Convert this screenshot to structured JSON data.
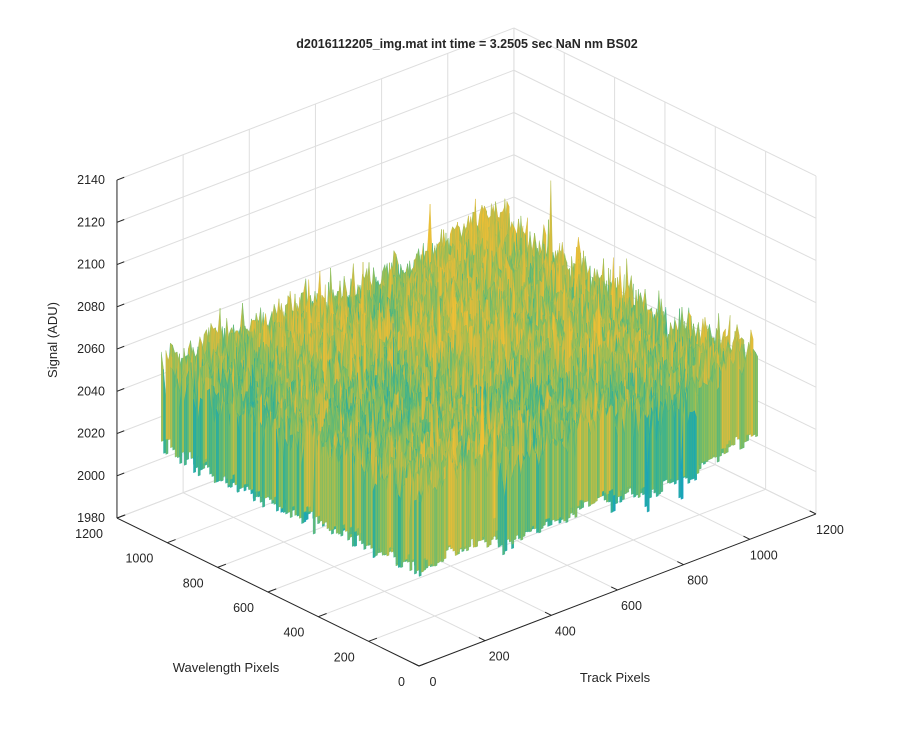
{
  "chart_data": {
    "type": "surface",
    "title": "d2016112205_img.mat int time = 3.2505 sec  NaN nm BS02",
    "xlabel": "Track Pixels",
    "ylabel": "Wavelength Pixels",
    "zlabel": "Signal (ADU)",
    "xlim": [
      0,
      1200
    ],
    "ylim": [
      0,
      1200
    ],
    "zlim": [
      1980,
      2140
    ],
    "x_ticks": [
      0,
      200,
      400,
      600,
      800,
      1000,
      1200
    ],
    "y_ticks": [
      0,
      200,
      400,
      600,
      800,
      1000,
      1200
    ],
    "z_ticks": [
      1980,
      2000,
      2020,
      2040,
      2060,
      2080,
      2100,
      2120,
      2140
    ],
    "x_tick_labels": [
      "0",
      "200",
      "400",
      "600",
      "800",
      "1000",
      "1200"
    ],
    "y_tick_labels": [
      "0",
      "200",
      "400",
      "600",
      "800",
      "1000",
      "1200"
    ],
    "z_tick_labels": [
      "1980",
      "2000",
      "2020",
      "2040",
      "2060",
      "2080",
      "2100",
      "2120",
      "2140"
    ],
    "grid": true,
    "colormap": [
      "#1f8fd6",
      "#16a6b8",
      "#3bb38d",
      "#8dbf5a",
      "#d8bb3e",
      "#efc034"
    ],
    "surface_summary": {
      "x_extent": [
        0,
        1024
      ],
      "y_extent": [
        0,
        1024
      ],
      "typical_signal": 2060,
      "signal_range": [
        1985,
        2125
      ],
      "peak_region": "high Track Pixels, high Wavelength Pixels"
    }
  }
}
